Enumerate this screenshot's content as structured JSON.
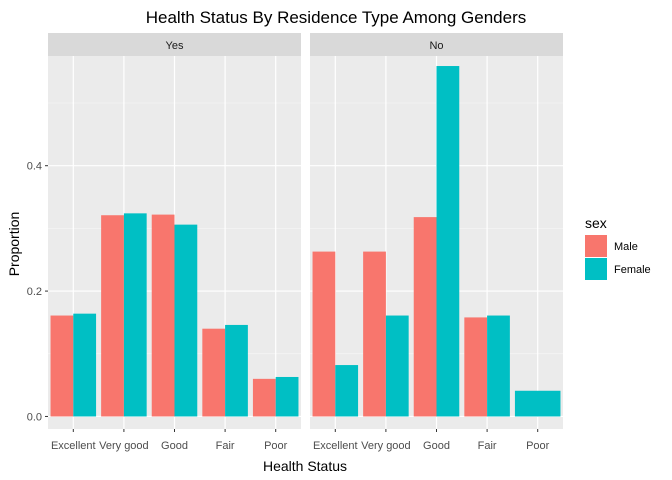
{
  "chart_data": {
    "type": "bar",
    "title": "Health Status By Residence Type Among Genders",
    "xlabel": "Health Status",
    "ylabel": "Proportion",
    "categories": [
      "Excellent",
      "Very good",
      "Good",
      "Fair",
      "Poor"
    ],
    "ylim": [
      -0.02,
      0.575
    ],
    "yticks": [
      0.0,
      0.2,
      0.4
    ],
    "ytick_labels": [
      "0.0",
      "0.2",
      "0.4"
    ],
    "grid": true,
    "legend": {
      "title": "sex",
      "placement": "right",
      "entries": [
        "Male",
        "Female"
      ]
    },
    "colors": {
      "Male": "#F8766D",
      "Female": "#00BFC4"
    },
    "panels": [
      {
        "label": "Yes",
        "series": [
          {
            "name": "Male",
            "values": [
              0.161,
              0.321,
              0.322,
              0.14,
              0.06
            ]
          },
          {
            "name": "Female",
            "values": [
              0.164,
              0.324,
              0.306,
              0.146,
              0.063
            ]
          }
        ]
      },
      {
        "label": "No",
        "series": [
          {
            "name": "Male",
            "values": [
              0.263,
              0.263,
              0.318,
              0.158,
              null
            ]
          },
          {
            "name": "Female",
            "values": [
              0.082,
              0.161,
              0.559,
              0.161,
              0.041
            ]
          }
        ]
      }
    ]
  }
}
